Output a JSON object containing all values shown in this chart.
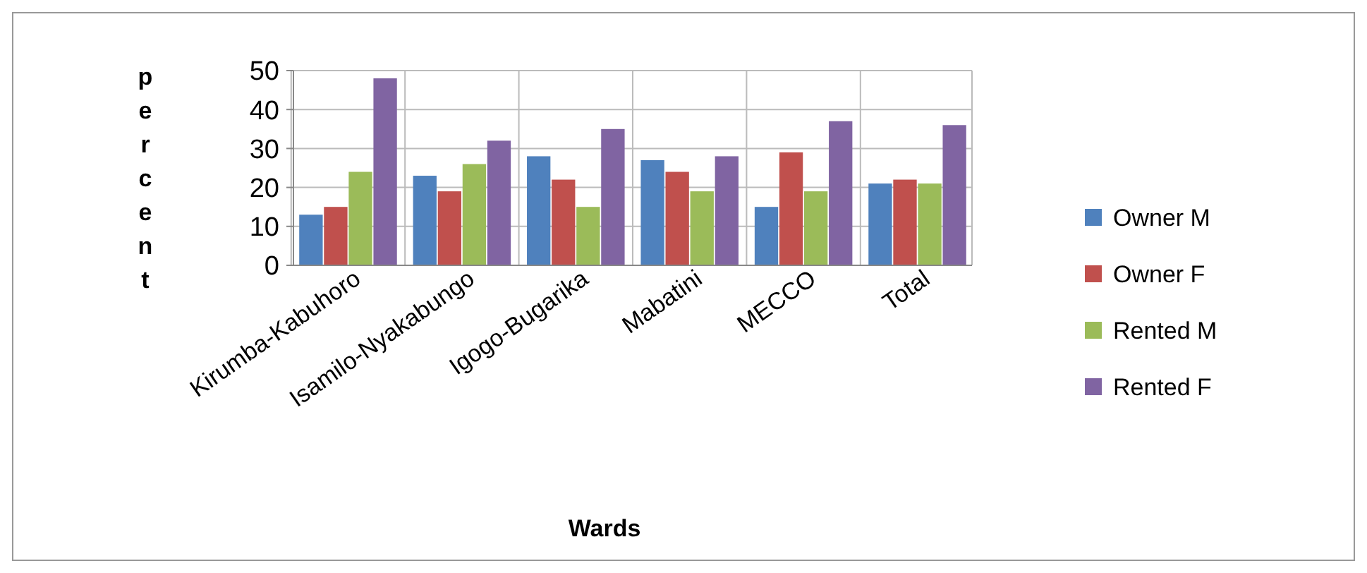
{
  "chart_data": {
    "type": "bar",
    "xlabel": "Wards",
    "ylabel": "percent",
    "categories": [
      "Kirumba-Kabuhoro",
      "Isamilo-Nyakabungo",
      "Igogo-Bugarika",
      "Mabatini",
      "MECCO",
      "Total"
    ],
    "series": [
      {
        "name": "Owner  M",
        "color": "#4f81bd",
        "values": [
          13,
          23,
          28,
          27,
          15,
          21
        ]
      },
      {
        "name": "Owner  F",
        "color": "#c0504d",
        "values": [
          15,
          19,
          22,
          24,
          29,
          22
        ]
      },
      {
        "name": "Rented  M",
        "color": "#9bbb59",
        "values": [
          24,
          26,
          15,
          19,
          19,
          21
        ]
      },
      {
        "name": "Rented  F",
        "color": "#8064a2",
        "values": [
          48,
          32,
          35,
          28,
          37,
          36
        ]
      }
    ],
    "ylim": [
      0,
      50
    ],
    "yticks": [
      0,
      10,
      20,
      30,
      40,
      50
    ],
    "grid": true,
    "legend": "right"
  }
}
